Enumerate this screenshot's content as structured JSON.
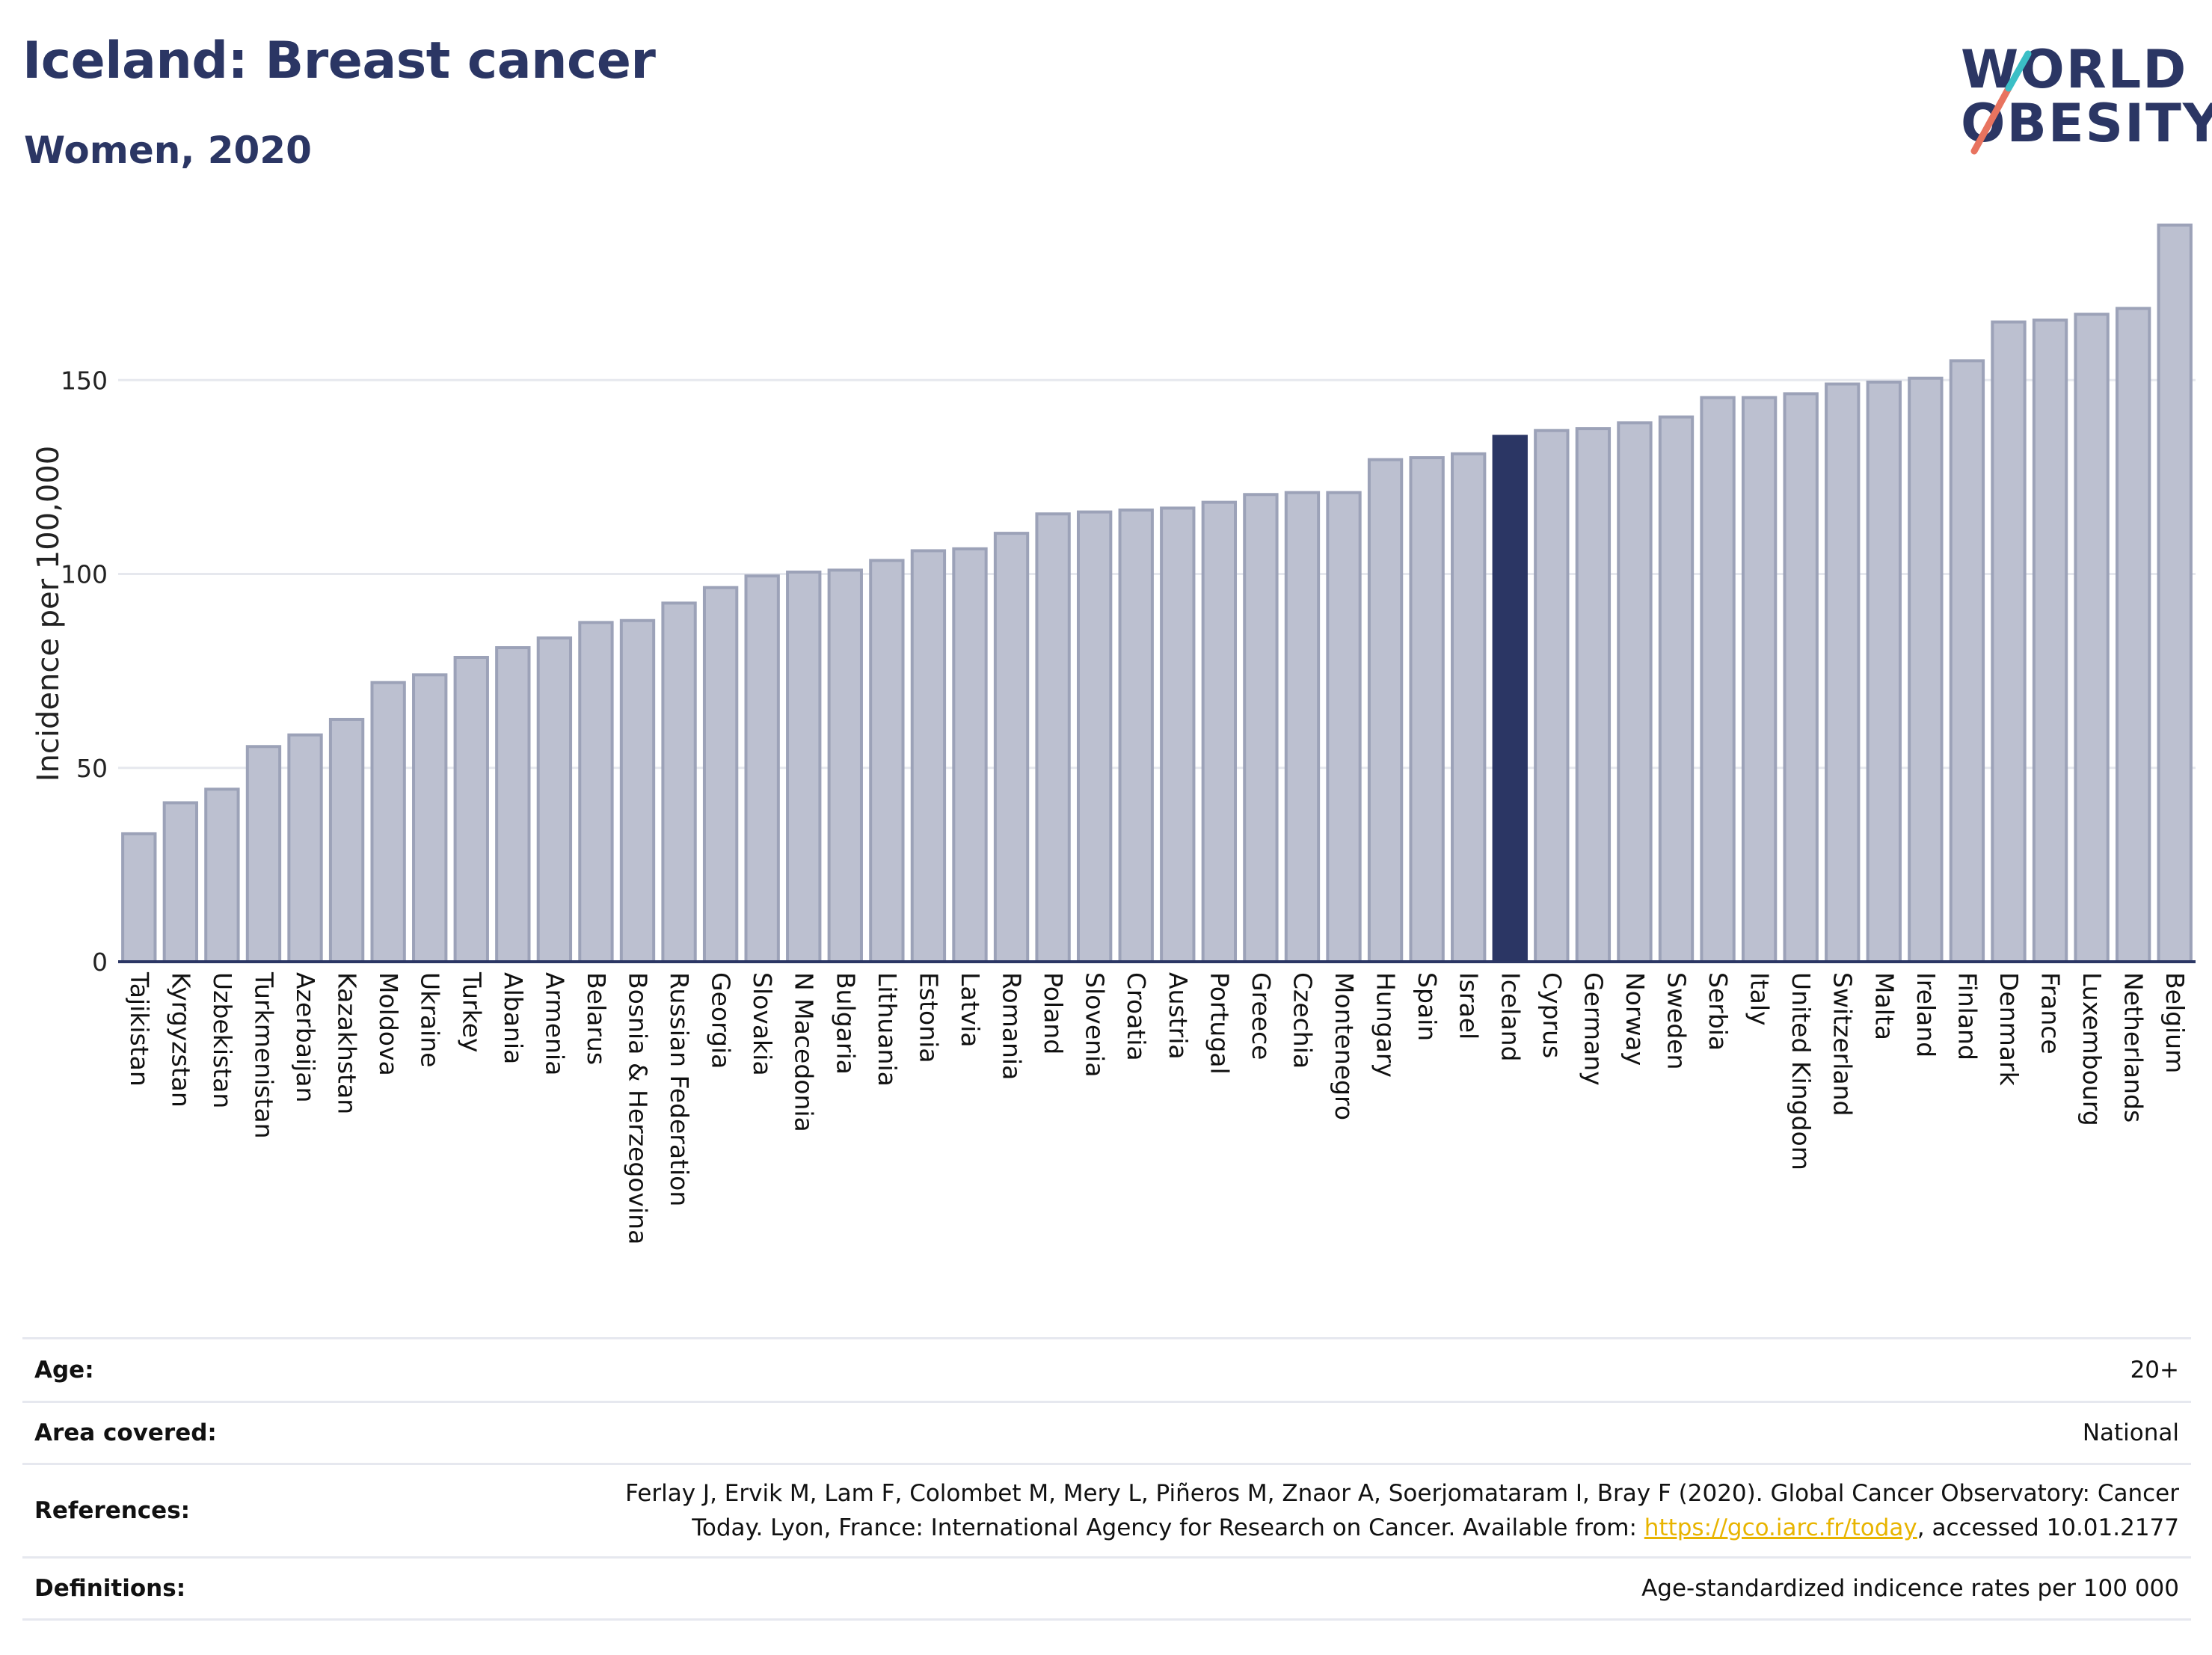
{
  "header": {
    "title": "Iceland: Breast cancer",
    "subtitle": "Women, 2020"
  },
  "logo": {
    "line1": "WORLD",
    "line2": "OBESITY",
    "accent_colors": [
      "#e8735f",
      "#3bbfc6"
    ]
  },
  "colors": {
    "bar": "#bcc0d0",
    "bar_edge": "#9ca2b8",
    "highlight": "#2b3664",
    "grid": "#e6e8ee",
    "axis": "#2b3664"
  },
  "chart_data": {
    "type": "bar",
    "title": "Iceland: Breast cancer",
    "subtitle": "Women, 2020",
    "ylabel": "Incidence per 100,000",
    "xlabel": "",
    "ylim": [
      0,
      195
    ],
    "yticks": [
      0,
      50,
      100,
      150
    ],
    "grid": true,
    "highlight": "Iceland",
    "categories": [
      "Tajikistan",
      "Kyrgyzstan",
      "Uzbekistan",
      "Turkmenistan",
      "Azerbaijan",
      "Kazakhstan",
      "Moldova",
      "Ukraine",
      "Turkey",
      "Albania",
      "Armenia",
      "Belarus",
      "Bosnia & Herzegovina",
      "Russian Federation",
      "Georgia",
      "Slovakia",
      "N Macedonia",
      "Bulgaria",
      "Lithuania",
      "Estonia",
      "Latvia",
      "Romania",
      "Poland",
      "Slovenia",
      "Croatia",
      "Austria",
      "Portugal",
      "Greece",
      "Czechia",
      "Montenegro",
      "Hungary",
      "Spain",
      "Israel",
      "Iceland",
      "Cyprus",
      "Germany",
      "Norway",
      "Sweden",
      "Serbia",
      "Italy",
      "United Kingdom",
      "Switzerland",
      "Malta",
      "Ireland",
      "Finland",
      "Denmark",
      "France",
      "Luxembourg",
      "Netherlands",
      "Belgium"
    ],
    "values": [
      33.0,
      41.0,
      44.5,
      55.5,
      58.5,
      62.5,
      72.0,
      74.0,
      78.5,
      81.0,
      83.5,
      87.5,
      88.0,
      92.5,
      96.5,
      99.5,
      100.5,
      101.0,
      103.5,
      106.0,
      106.5,
      110.5,
      115.5,
      116.0,
      116.5,
      117.0,
      118.5,
      120.5,
      121.0,
      121.0,
      129.5,
      130.0,
      131.0,
      135.5,
      137.0,
      137.5,
      139.0,
      140.5,
      145.5,
      145.5,
      146.5,
      149.0,
      149.5,
      150.5,
      155.0,
      165.0,
      165.5,
      167.0,
      168.5,
      190.0
    ]
  },
  "info": {
    "age_label": "Age:",
    "age_value": "20+",
    "area_label": "Area covered:",
    "area_value": "National",
    "references_label": "References:",
    "references_line1": "Ferlay J, Ervik M, Lam F, Colombet M, Mery L, Piñeros M, Znaor A, Soerjomataram I, Bray F (2020). Global Cancer Observatory: Cancer",
    "references_line2_pre": "Today. Lyon, France: International Agency for Research on Cancer. Available from: ",
    "references_link": "https://gco.iarc.fr/today",
    "references_line2_post": ", accessed 10.01.2177",
    "definitions_label": "Definitions:",
    "definitions_value": "Age-standardized indicence rates per 100 000"
  }
}
